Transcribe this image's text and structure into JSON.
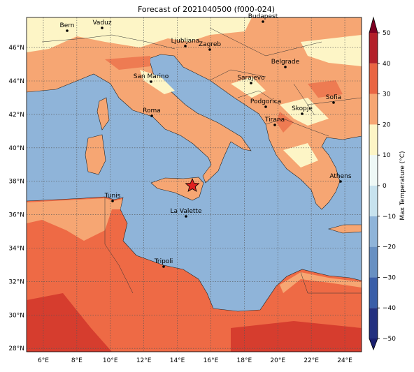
{
  "title": "Forecast of 2021040500 (f000-024)",
  "map": {
    "cities": [
      "Bern",
      "Vaduz",
      "Budapest",
      "Ljubljana",
      "Zagreb",
      "Belgrade",
      "San Marino",
      "Sarajevo",
      "Sofia",
      "Podgorica",
      "Skopje",
      "Roma",
      "Tirana",
      "Athens",
      "Tunis",
      "La Valette",
      "Tripoli"
    ],
    "xlim": [
      5,
      25
    ],
    "ylim": [
      27.8,
      47.8
    ],
    "xticks": [
      {
        "value": 6,
        "label": "6°E"
      },
      {
        "value": 8,
        "label": "8°E"
      },
      {
        "value": 10,
        "label": "10°E"
      },
      {
        "value": 12,
        "label": "12°E"
      },
      {
        "value": 14,
        "label": "14°E"
      },
      {
        "value": 16,
        "label": "16°E"
      },
      {
        "value": 18,
        "label": "18°E"
      },
      {
        "value": 20,
        "label": "20°E"
      },
      {
        "value": 22,
        "label": "22°E"
      },
      {
        "value": 24,
        "label": "24°E"
      }
    ],
    "yticks": [
      {
        "value": 28,
        "label": "28°N"
      },
      {
        "value": 30,
        "label": "30°N"
      },
      {
        "value": 32,
        "label": "32°N"
      },
      {
        "value": 34,
        "label": "34°N"
      },
      {
        "value": 36,
        "label": "36°N"
      },
      {
        "value": 38,
        "label": "38°N"
      },
      {
        "value": 40,
        "label": "40°N"
      },
      {
        "value": 42,
        "label": "42°N"
      },
      {
        "value": 44,
        "label": "44°N"
      },
      {
        "value": 46,
        "label": "46°N"
      }
    ],
    "grid": true
  },
  "colorbar": {
    "label": "Max Temperature (°C)",
    "lim": [
      -50,
      50
    ],
    "ticks": [
      {
        "value": -50,
        "label": "−50"
      },
      {
        "value": -40,
        "label": "−40"
      },
      {
        "value": -30,
        "label": "−30"
      },
      {
        "value": -20,
        "label": "−20"
      },
      {
        "value": -10,
        "label": "−10"
      },
      0,
      10,
      20,
      30,
      40,
      50
    ],
    "colors": [
      "#23307f",
      "#3a5ea8",
      "#6890c2",
      "#8fb4d9",
      "#c7e2ee",
      "#eef8f6",
      "#fdf5c6",
      "#f6a673",
      "#e96543",
      "#b3202a"
    ],
    "extend_colors": [
      "#1a1f6e",
      "#7d0022"
    ]
  }
}
